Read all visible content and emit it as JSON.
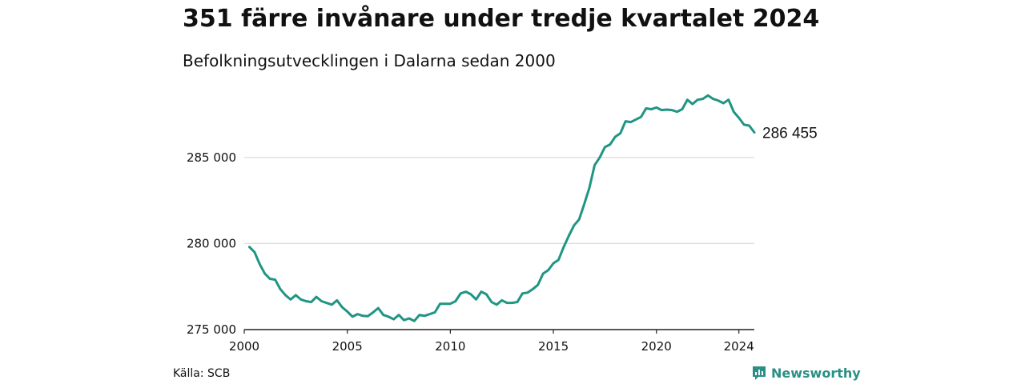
{
  "header": {
    "title": "351 färre invånare under tredje kvartalet 2024",
    "subtitle": "Befolkningsutvecklingen i Dalarna sedan 2000"
  },
  "footer": {
    "source": "Källa: SCB",
    "brand": "Newsworthy",
    "brand_icon": "newsworthy-logo-icon"
  },
  "colors": {
    "line": "#1f9584",
    "grid": "#dddddd",
    "axis": "#222222",
    "brand": "#2a8f86"
  },
  "chart_data": {
    "type": "line",
    "title": "351 färre invånare under tredje kvartalet 2024",
    "subtitle": "Befolkningsutvecklingen i Dalarna sedan 2000",
    "xlabel": "",
    "ylabel": "",
    "xlim": [
      2000,
      2024.75
    ],
    "ylim": [
      275000,
      288800
    ],
    "x_ticks": [
      2000,
      2005,
      2010,
      2015,
      2020,
      2024
    ],
    "y_ticks": [
      275000,
      280000,
      285000
    ],
    "y_tick_labels": [
      "275 000",
      "280 000",
      "285 000"
    ],
    "grid": "horizontal",
    "end_label": "286 455",
    "series": [
      {
        "x_start": 2000.25,
        "x_step": 0.25,
        "values": [
          279800,
          279500,
          278800,
          278250,
          277950,
          277900,
          277350,
          277000,
          276750,
          277000,
          276750,
          276650,
          276600,
          276900,
          276650,
          276550,
          276450,
          276700,
          276300,
          276050,
          275750,
          275900,
          275800,
          275780,
          276000,
          276250,
          275850,
          275750,
          275600,
          275850,
          275550,
          275650,
          275500,
          275850,
          275800,
          275900,
          276000,
          276500,
          276500,
          276500,
          276650,
          277100,
          277200,
          277050,
          276750,
          277200,
          277050,
          276600,
          276450,
          276700,
          276550,
          276550,
          276600,
          277100,
          277150,
          277350,
          277600,
          278250,
          278450,
          278850,
          279050,
          279800,
          280450,
          281050,
          281400,
          282300,
          283250,
          284550,
          285000,
          285600,
          285750,
          286200,
          286400,
          287100,
          287050,
          287200,
          287350,
          287850,
          287800,
          287900,
          287750,
          287780,
          287750,
          287650,
          287800,
          288350,
          288100,
          288350,
          288400,
          288600,
          288400,
          288300,
          288150,
          288350,
          287650,
          287300,
          286900,
          286850,
          286455
        ]
      }
    ]
  }
}
